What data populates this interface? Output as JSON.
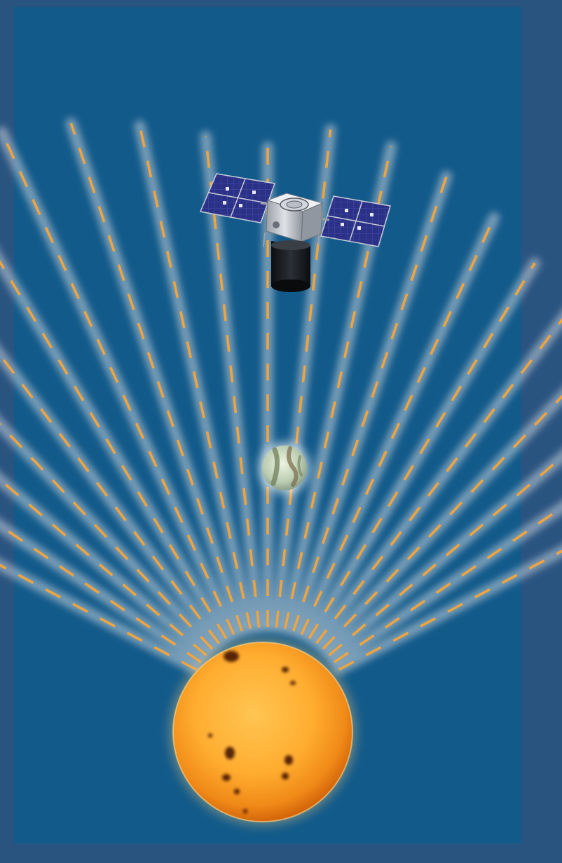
{
  "colors": {
    "frame": "#2a5480",
    "panel": "#125a8a",
    "ray_glow": "#c8d2da",
    "ray_dash": "#f2a43c",
    "sun_core": "#ffb23a",
    "sun_edge": "#e07a10",
    "sunspot": "#3a0e06",
    "planet": "#c9dcc4",
    "solar_panel": "#2a2f80",
    "spacecraft_body": "#c9ccd2",
    "telescope": "#15191e"
  },
  "scene": {
    "ray_count": 21
  }
}
